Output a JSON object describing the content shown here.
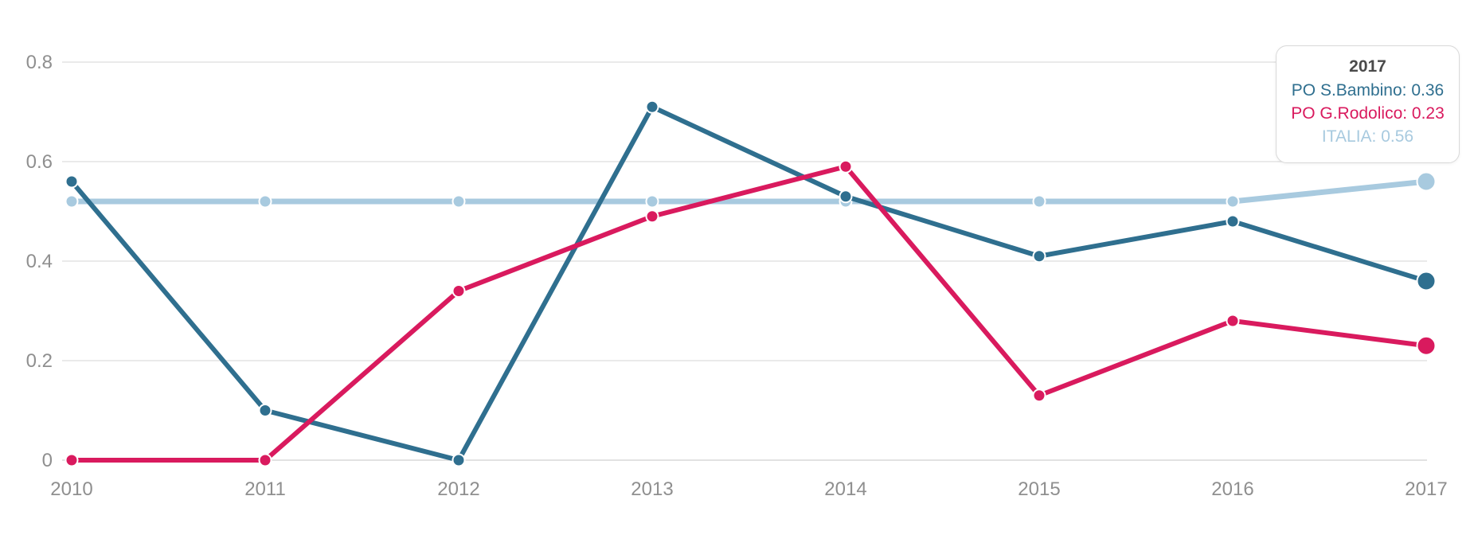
{
  "chart": {
    "tooltip": {
      "title": "2017",
      "rows": [
        {
          "text": "PO S.Bambino: 0.36"
        },
        {
          "text": "PO G.Rodolico: 0.23"
        },
        {
          "text": "ITALIA: 0.56"
        }
      ]
    }
  },
  "chart_data": {
    "type": "line",
    "x": [
      "2010",
      "2011",
      "2012",
      "2013",
      "2014",
      "2015",
      "2016",
      "2017"
    ],
    "series": [
      {
        "name": "PO S.Bambino",
        "color": "#2f6f8f",
        "values": [
          0.56,
          0.1,
          0.0,
          0.71,
          0.53,
          0.41,
          0.48,
          0.36
        ]
      },
      {
        "name": "PO G.Rodolico",
        "color": "#d91a5e",
        "values": [
          0.0,
          0.0,
          0.34,
          0.49,
          0.59,
          0.13,
          0.28,
          0.23
        ]
      },
      {
        "name": "ITALIA",
        "color": "#a8cadf",
        "values": [
          0.52,
          0.52,
          0.52,
          0.52,
          0.52,
          0.52,
          0.52,
          0.56
        ]
      }
    ],
    "title": "",
    "xlabel": "",
    "ylabel": "",
    "ylim": [
      0,
      0.8
    ],
    "yticks": [
      "0",
      "0.2",
      "0.4",
      "0.6",
      "0.8"
    ],
    "grid": true,
    "highlighted_x": "2017",
    "legend_position": "tooltip-top-right"
  },
  "colors": {
    "grid_line": "#e3e3e3",
    "axis_line": "#d8d8d8",
    "axis_label": "#8f8f8f",
    "tooltip_title": "#4a4a4a",
    "tooltip_border": "#d9d9d9",
    "background": "#ffffff"
  }
}
